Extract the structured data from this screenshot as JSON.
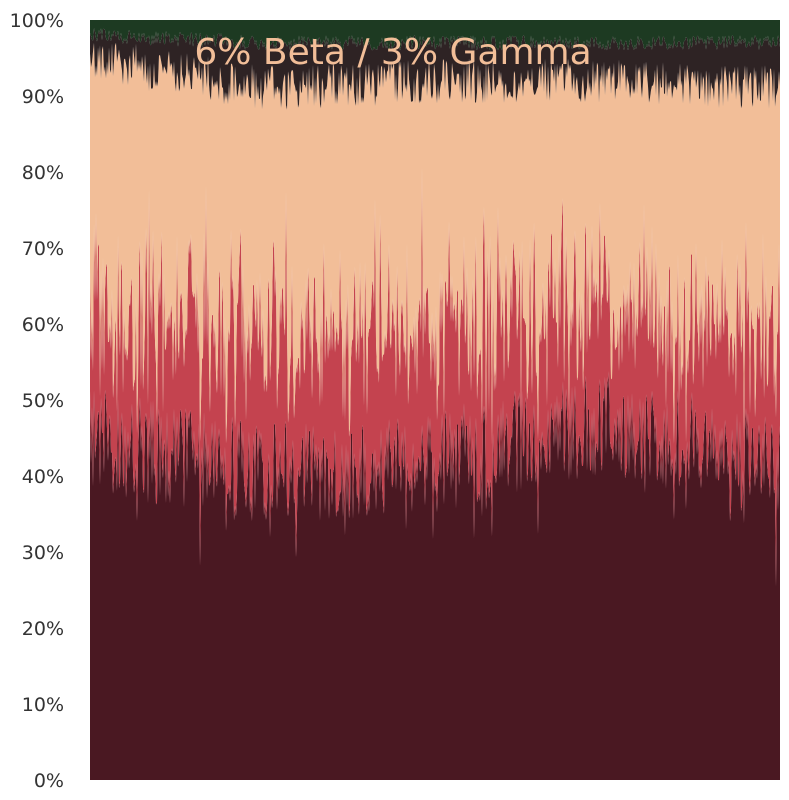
{
  "chart_data": {
    "type": "area",
    "stacked": true,
    "normalized_percent": true,
    "title": "6% Beta / 3% Gamma",
    "xlabel": "",
    "ylabel": "",
    "ylim": [
      0,
      100
    ],
    "y_ticks": [
      "0%",
      "10%",
      "20%",
      "30%",
      "40%",
      "50%",
      "60%",
      "70%",
      "80%",
      "90%",
      "100%"
    ],
    "grid": false,
    "legend": "none",
    "x_ticks_shown": false,
    "band_colors": [
      "#4a1822",
      "#c4434f",
      "#f2be98",
      "#2e2324",
      "#1d3a22"
    ],
    "title_color": "#f2be98",
    "series_boundaries_profile": [
      {
        "segment": 1,
        "top_layer1": 45,
        "top_layer2": 57,
        "top_layer3": 95,
        "top_layer4": 98
      },
      {
        "segment": 2,
        "top_layer1": 40,
        "top_layer2": 55,
        "top_layer3": 91,
        "top_layer4": 97
      },
      {
        "segment": 3,
        "top_layer1": 42,
        "top_layer2": 56,
        "top_layer3": 92,
        "top_layer4": 97
      },
      {
        "segment": 4,
        "top_layer1": 47,
        "top_layer2": 60,
        "top_layer3": 92,
        "top_layer4": 97
      },
      {
        "segment": 5,
        "top_layer1": 41,
        "top_layer2": 55,
        "top_layer3": 91,
        "top_layer4": 97
      }
    ]
  }
}
